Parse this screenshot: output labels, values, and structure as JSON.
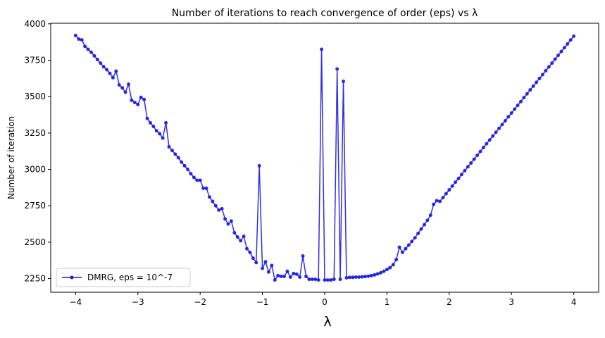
{
  "chart_data": {
    "type": "line",
    "title": "Number of iterations to reach convergence of order (eps) vs λ",
    "xlabel": "λ",
    "ylabel": "Number of iteration",
    "x": [
      -4,
      -3.95,
      -3.9,
      -3.85,
      -3.8,
      -3.75,
      -3.7,
      -3.65,
      -3.6,
      -3.55,
      -3.5,
      -3.45,
      -3.4,
      -3.35,
      -3.3,
      -3.25,
      -3.2,
      -3.15,
      -3.1,
      -3.05,
      -3,
      -2.95,
      -2.9,
      -2.85,
      -2.8,
      -2.75,
      -2.7,
      -2.65,
      -2.6,
      -2.55,
      -2.5,
      -2.45,
      -2.4,
      -2.35,
      -2.3,
      -2.25,
      -2.2,
      -2.15,
      -2.1,
      -2.05,
      -2,
      -1.95,
      -1.9,
      -1.85,
      -1.8,
      -1.75,
      -1.7,
      -1.65,
      -1.6,
      -1.55,
      -1.5,
      -1.45,
      -1.4,
      -1.35,
      -1.3,
      -1.25,
      -1.2,
      -1.15,
      -1.1,
      -1.05,
      -1,
      -0.95,
      -0.9,
      -0.85,
      -0.8,
      -0.75,
      -0.7,
      -0.65,
      -0.6,
      -0.55,
      -0.5,
      -0.45,
      -0.4,
      -0.35,
      -0.3,
      -0.25,
      -0.2,
      -0.15,
      -0.1,
      -0.05,
      0,
      0.05,
      0.1,
      0.15,
      0.2,
      0.25,
      0.3,
      0.35,
      0.4,
      0.45,
      0.5,
      0.55,
      0.6,
      0.65,
      0.7,
      0.75,
      0.8,
      0.85,
      0.9,
      0.95,
      1,
      1.05,
      1.1,
      1.15,
      1.2,
      1.25,
      1.3,
      1.35,
      1.4,
      1.45,
      1.5,
      1.55,
      1.6,
      1.65,
      1.7,
      1.75,
      1.8,
      1.85,
      1.9,
      1.95,
      2,
      2.05,
      2.1,
      2.15,
      2.2,
      2.25,
      2.3,
      2.35,
      2.4,
      2.45,
      2.5,
      2.55,
      2.6,
      2.65,
      2.7,
      2.75,
      2.8,
      2.85,
      2.9,
      2.95,
      3,
      3.05,
      3.1,
      3.15,
      3.2,
      3.25,
      3.3,
      3.35,
      3.4,
      3.45,
      3.5,
      3.55,
      3.6,
      3.65,
      3.7,
      3.75,
      3.8,
      3.85,
      3.9,
      3.95,
      4
    ],
    "series": [
      {
        "name": "DMRG, eps = 10^-7",
        "color": "#1a1ae6",
        "values": [
          3920,
          3895,
          3890,
          3845,
          3825,
          3805,
          3780,
          3755,
          3730,
          3705,
          3685,
          3660,
          3630,
          3675,
          3580,
          3560,
          3530,
          3585,
          3475,
          3460,
          3445,
          3495,
          3480,
          3350,
          3320,
          3295,
          3265,
          3245,
          3215,
          3320,
          3155,
          3130,
          3105,
          3080,
          3050,
          3025,
          3000,
          2970,
          2945,
          2925,
          2925,
          2870,
          2870,
          2810,
          2780,
          2750,
          2720,
          2730,
          2660,
          2625,
          2645,
          2565,
          2535,
          2510,
          2540,
          2455,
          2430,
          2390,
          2360,
          3025,
          2320,
          2365,
          2295,
          2340,
          2240,
          2270,
          2265,
          2265,
          2300,
          2260,
          2285,
          2280,
          2260,
          2405,
          2265,
          2245,
          2245,
          2245,
          2240,
          3825,
          2240,
          2240,
          2240,
          2245,
          3690,
          2245,
          3605,
          2255,
          2258,
          2258,
          2260,
          2260,
          2262,
          2264,
          2266,
          2270,
          2275,
          2282,
          2290,
          2300,
          2312,
          2325,
          2345,
          2380,
          2465,
          2430,
          2455,
          2480,
          2505,
          2530,
          2560,
          2590,
          2620,
          2650,
          2685,
          2760,
          2785,
          2780,
          2806,
          2833,
          2859,
          2886,
          2912,
          2938,
          2965,
          2991,
          3018,
          3044,
          3070,
          3097,
          3123,
          3150,
          3176,
          3202,
          3229,
          3255,
          3282,
          3308,
          3334,
          3361,
          3387,
          3414,
          3440,
          3466,
          3493,
          3519,
          3546,
          3572,
          3598,
          3625,
          3651,
          3678,
          3704,
          3730,
          3757,
          3783,
          3810,
          3836,
          3862,
          3889,
          3915
        ]
      }
    ],
    "xlim": [
      -4.4,
      4.4
    ],
    "xticks": [
      {
        "value": -4,
        "label": "−4"
      },
      {
        "value": -3,
        "label": "−3"
      },
      {
        "value": -2,
        "label": "−2"
      },
      {
        "value": -1,
        "label": "−1"
      },
      0,
      1,
      2,
      3,
      4
    ],
    "ylim": [
      2156,
      4004
    ],
    "yticks": [
      2250,
      2500,
      2750,
      3000,
      3250,
      3500,
      3750,
      4000
    ],
    "legend": "lower left"
  }
}
